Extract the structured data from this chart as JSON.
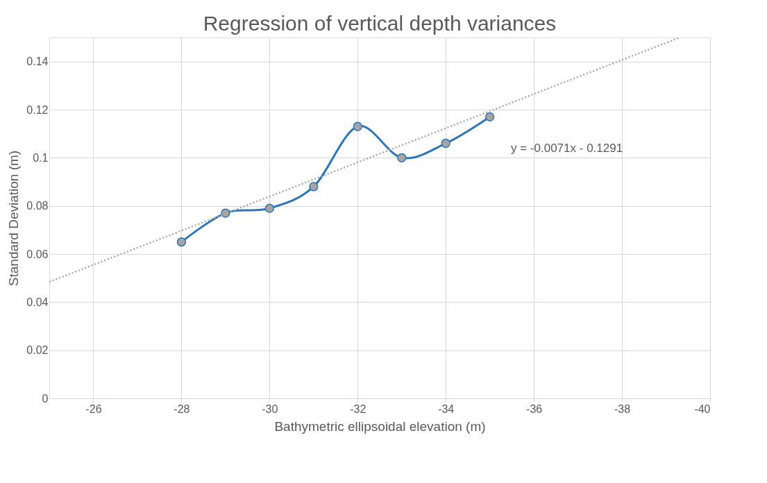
{
  "chart_data": {
    "type": "line",
    "title": "Regression of vertical depth variances",
    "xlabel": "Bathymetric ellipsoidal elevation (m)",
    "ylabel": "Standard Deviation (m)",
    "x": [
      -28,
      -29,
      -30,
      -31,
      -32,
      -33,
      -34,
      -35
    ],
    "series": [
      {
        "color": "#2e75b6",
        "marker": "circle",
        "line_style": "solid",
        "values": [
          0.065,
          0.077,
          0.079,
          0.088,
          0.113,
          0.1,
          0.106,
          0.117
        ]
      },
      {
        "color": "#a6a6a6",
        "marker": "none",
        "line_style": "dotted",
        "x": [
          -25,
          -39.3
        ],
        "values": [
          0.0484,
          0.1499
        ]
      }
    ],
    "xlim": [
      -25,
      -40
    ],
    "xticks": [
      -26,
      -28,
      -30,
      -32,
      -34,
      -36,
      -38,
      -40
    ],
    "ylim": [
      0,
      0.15
    ],
    "yticks": [
      0,
      0.02,
      0.04,
      0.06,
      0.08,
      0.1,
      0.12,
      0.14
    ],
    "annotations": [
      "y = -0.0071x - 0.1291"
    ],
    "grid": true
  }
}
